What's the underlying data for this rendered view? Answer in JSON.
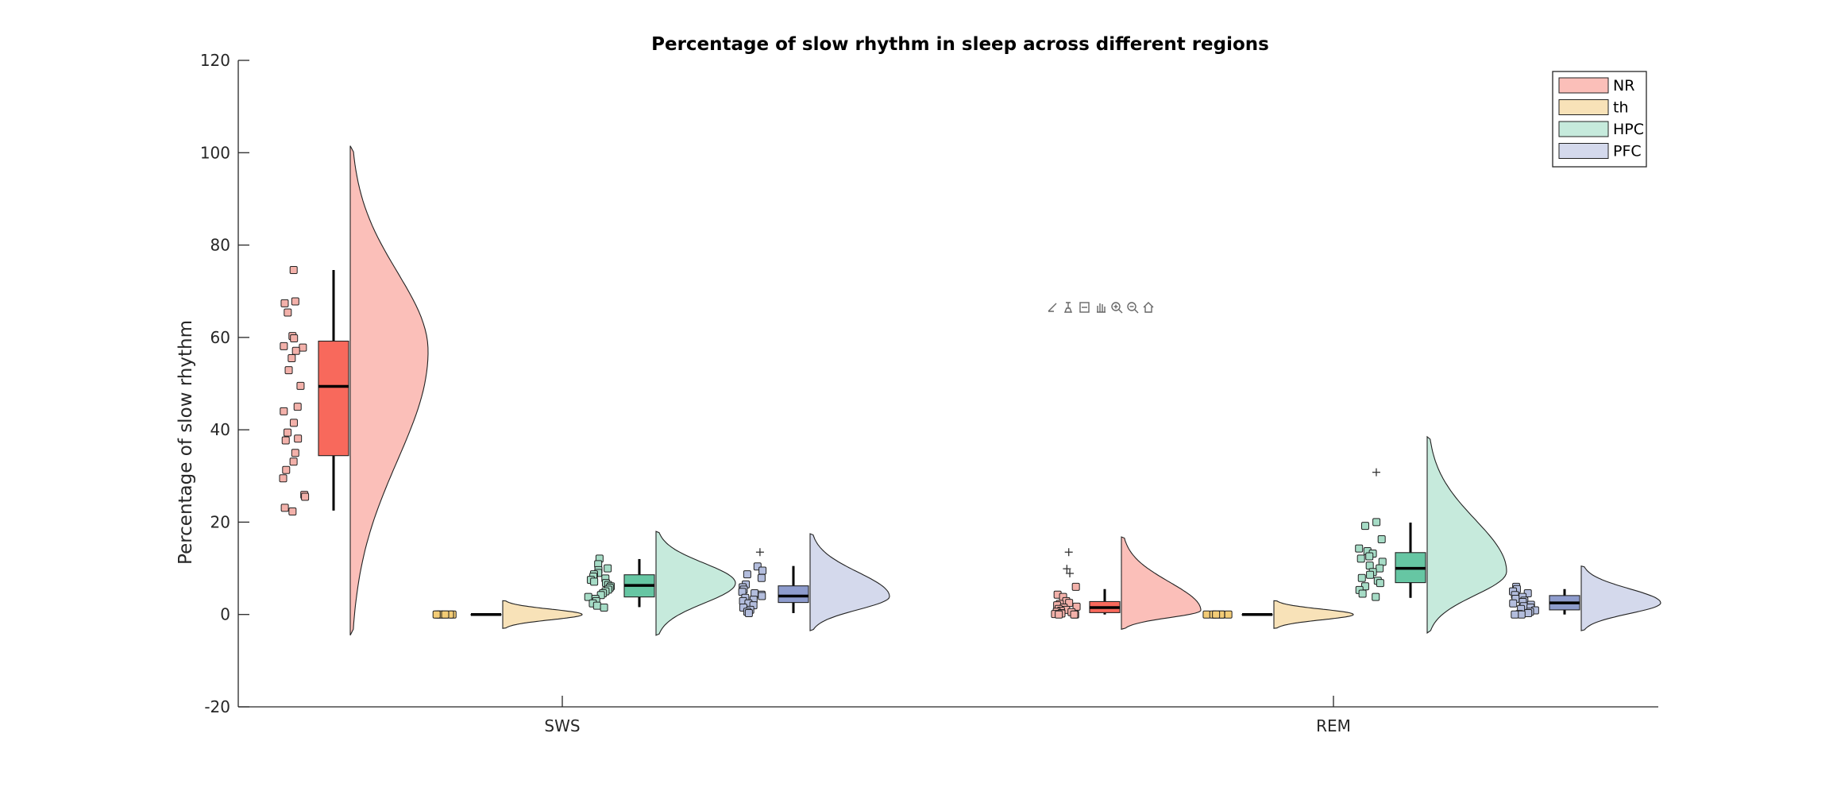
{
  "toolbar": {
    "icons": [
      "brush-icon",
      "data-tips-icon",
      "datatip-select-icon",
      "pan-icon",
      "zoom-in-icon",
      "zoom-out-icon",
      "home-icon"
    ]
  },
  "chart_data": {
    "type": "raincloud",
    "title": "Percentage of slow rhythm in sleep across different regions",
    "xlabel": "",
    "ylabel": "Percentage of slow rhythm",
    "categories": [
      "SWS",
      "REM"
    ],
    "ylim": [
      -20,
      120
    ],
    "yticks": [
      -20,
      0,
      20,
      40,
      60,
      80,
      100,
      120
    ],
    "grid": false,
    "legend": {
      "position": "top-right",
      "entries": [
        "NR",
        "th",
        "HPC",
        "PFC"
      ]
    },
    "colors": {
      "NR": {
        "box": "#f8695c",
        "cloud": "#fbbfb9",
        "dot": "#f3b1aa"
      },
      "th": {
        "box": "#f4c36a",
        "cloud": "#f8e2b8",
        "dot": "#f3cc76"
      },
      "HPC": {
        "box": "#66c6a3",
        "cloud": "#c6eadc",
        "dot": "#a6dcc6"
      },
      "PFC": {
        "box": "#8e9ccd",
        "cloud": "#d4d9ec",
        "dot": "#b3bddd"
      }
    },
    "series": [
      {
        "name": "NR",
        "groups": [
          {
            "category": "SWS",
            "box": {
              "q1": 34.4,
              "median": 49.4,
              "q3": 59.2,
              "whisker_low": 22.5,
              "whisker_high": 74.6
            },
            "outliers": [],
            "points": [
              74.6,
              67.8,
              67.4,
              65.4,
              60.3,
              59.8,
              58.1,
              57.8,
              57.1,
              55.5,
              52.9,
              49.5,
              45.0,
              44.0,
              41.5,
              39.4,
              38.1,
              37.7,
              35.0,
              33.1,
              31.3,
              29.5,
              25.9,
              25.5,
              23.1,
              22.3
            ],
            "density": {
              "range": [
                -4.5,
                101.5
              ],
              "peak": 57
            }
          },
          {
            "category": "REM",
            "box": {
              "q1": 0.4,
              "median": 1.5,
              "q3": 2.8,
              "whisker_low": 0.0,
              "whisker_high": 5.5
            },
            "outliers": [
              13.5,
              9.9,
              8.9
            ],
            "points": [
              6.0,
              4.3,
              3.8,
              2.9,
              2.5,
              2.3,
              2.0,
              1.7,
              1.5,
              1.2,
              1.0,
              0.8,
              0.6,
              0.5,
              0.3,
              0.2,
              0.1,
              0.0,
              0.0,
              0.0
            ],
            "density": {
              "range": [
                -3.2,
                16.8
              ],
              "peak": 0.9
            }
          }
        ]
      },
      {
        "name": "th",
        "groups": [
          {
            "category": "SWS",
            "box": {
              "q1": 0.0,
              "median": 0.0,
              "q3": 0.0,
              "whisker_low": 0.0,
              "whisker_high": 0.0
            },
            "outliers": [],
            "points": [
              0.0,
              0.0,
              0.0,
              0.0,
              0.0,
              0.0,
              0.0
            ],
            "density": {
              "range": [
                -3.0,
                3.0
              ],
              "peak": 0.0
            }
          },
          {
            "category": "REM",
            "box": {
              "q1": 0.0,
              "median": 0.0,
              "q3": 0.0,
              "whisker_low": 0.0,
              "whisker_high": 0.0
            },
            "outliers": [],
            "points": [
              0.0,
              0.0,
              0.0,
              0.0,
              0.0,
              0.0,
              0.0
            ],
            "density": {
              "range": [
                -3.0,
                3.0
              ],
              "peak": 0.0
            }
          }
        ]
      },
      {
        "name": "HPC",
        "groups": [
          {
            "category": "SWS",
            "box": {
              "q1": 3.8,
              "median": 6.3,
              "q3": 8.6,
              "whisker_low": 1.6,
              "whisker_high": 12.0
            },
            "outliers": [],
            "points": [
              12.1,
              10.9,
              10.0,
              9.6,
              9.0,
              8.7,
              8.2,
              7.8,
              7.5,
              7.1,
              6.8,
              6.4,
              6.1,
              5.8,
              5.4,
              5.0,
              4.6,
              4.2,
              3.8,
              3.4,
              2.9,
              2.4,
              1.9,
              1.5
            ],
            "density": {
              "range": [
                -4.5,
                18.0
              ],
              "peak": 6.8
            }
          },
          {
            "category": "REM",
            "box": {
              "q1": 6.9,
              "median": 10.0,
              "q3": 13.4,
              "whisker_low": 3.6,
              "whisker_high": 19.9
            },
            "outliers": [
              30.8
            ],
            "points": [
              20.0,
              19.2,
              16.3,
              14.3,
              13.7,
              13.2,
              12.6,
              12.1,
              11.4,
              10.6,
              10.0,
              9.2,
              8.6,
              7.9,
              7.3,
              6.8,
              6.1,
              5.3,
              4.5,
              3.8
            ],
            "density": {
              "range": [
                -4.0,
                38.5
              ],
              "peak": 9.3
            }
          }
        ]
      },
      {
        "name": "PFC",
        "groups": [
          {
            "category": "SWS",
            "box": {
              "q1": 2.6,
              "median": 4.0,
              "q3": 6.2,
              "whisker_low": 0.3,
              "whisker_high": 10.5
            },
            "outliers": [
              13.5
            ],
            "points": [
              10.4,
              9.5,
              8.7,
              7.9,
              6.5,
              5.9,
              5.4,
              4.9,
              4.6,
              4.3,
              4.0,
              3.6,
              3.2,
              2.9,
              2.4,
              2.0,
              1.5,
              1.0,
              0.6,
              0.3
            ],
            "density": {
              "range": [
                -3.5,
                17.5
              ],
              "peak": 3.9
            }
          },
          {
            "category": "REM",
            "box": {
              "q1": 1.0,
              "median": 2.5,
              "q3": 4.1,
              "whisker_low": 0.0,
              "whisker_high": 5.5
            },
            "outliers": [],
            "points": [
              6.0,
              5.5,
              5.0,
              4.6,
              4.2,
              3.8,
              3.4,
              3.0,
              2.7,
              2.4,
              2.1,
              1.8,
              1.5,
              1.2,
              0.9,
              0.6,
              0.3,
              0.1,
              0.0,
              0.0
            ],
            "density": {
              "range": [
                -3.5,
                10.5
              ],
              "peak": 2.5
            }
          }
        ]
      }
    ]
  }
}
